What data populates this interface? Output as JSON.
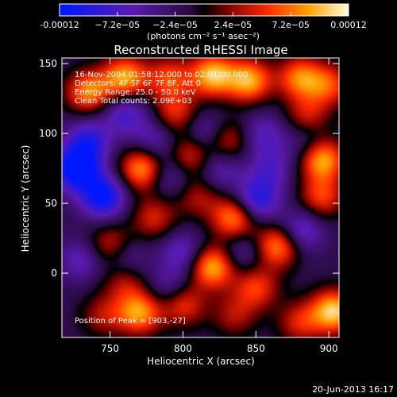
{
  "chart_data": {
    "type": "heatmap",
    "title": "Reconstructed RHESSI Image",
    "xlabel": "Heliocentric X (arcsec)",
    "ylabel": "Heliocentric Y (arcsec)",
    "xlim": [
      717,
      907
    ],
    "ylim": [
      -46,
      154
    ],
    "x_ticks": [
      750,
      800,
      850,
      900
    ],
    "y_ticks": [
      0,
      50,
      100,
      150
    ],
    "colorbar": {
      "range": [
        -0.00012,
        0.00012
      ],
      "tick_labels": [
        "-0.00012",
        "−7.2e−05",
        "−2.4e−05",
        "2.4e−05",
        "7.2e−05",
        "0.00012"
      ],
      "units": "(photons cm⁻² s⁻¹ asec⁻²)"
    },
    "annotations": [
      "16-Nov-2004 01:58:12.000 to 02:01:00.000",
      "Detectors: 4F 5F 6F 7F 8F, Att 0",
      "Energy Range: 25.0 - 50.0 keV",
      "Clean    Total counts: 2.09E+03"
    ],
    "peak_label": "Position of Peak = [903,-27]",
    "peak": [
      903,
      -27
    ],
    "blobs": [
      {
        "x": 735,
        "y": 130,
        "v": 0.8
      },
      {
        "x": 760,
        "y": 140,
        "v": 0.9
      },
      {
        "x": 790,
        "y": 140,
        "v": 0.6
      },
      {
        "x": 820,
        "y": 142,
        "v": 0.95
      },
      {
        "x": 845,
        "y": 138,
        "v": 0.9
      },
      {
        "x": 880,
        "y": 140,
        "v": 0.75
      },
      {
        "x": 900,
        "y": 135,
        "v": 0.6
      },
      {
        "x": 795,
        "y": 115,
        "v": 0.55
      },
      {
        "x": 885,
        "y": 112,
        "v": 0.5
      },
      {
        "x": 772,
        "y": 75,
        "v": 0.9
      },
      {
        "x": 805,
        "y": 85,
        "v": 0.6
      },
      {
        "x": 830,
        "y": 95,
        "v": 0.55
      },
      {
        "x": 895,
        "y": 82,
        "v": 0.95
      },
      {
        "x": 780,
        "y": 40,
        "v": 0.5
      },
      {
        "x": 810,
        "y": 55,
        "v": 0.4
      },
      {
        "x": 835,
        "y": 40,
        "v": 0.85
      },
      {
        "x": 865,
        "y": 20,
        "v": 0.85
      },
      {
        "x": 895,
        "y": 55,
        "v": 0.6
      },
      {
        "x": 750,
        "y": 20,
        "v": 0.55
      },
      {
        "x": 760,
        "y": -5,
        "v": 0.45
      },
      {
        "x": 820,
        "y": 5,
        "v": 0.95
      },
      {
        "x": 850,
        "y": -10,
        "v": 0.6
      },
      {
        "x": 745,
        "y": -30,
        "v": 0.4
      },
      {
        "x": 770,
        "y": -28,
        "v": 0.85
      },
      {
        "x": 800,
        "y": -22,
        "v": 0.6
      },
      {
        "x": 835,
        "y": -30,
        "v": 0.4
      },
      {
        "x": 880,
        "y": -35,
        "v": 0.5
      },
      {
        "x": 903,
        "y": -27,
        "v": 1.0
      },
      {
        "x": 727,
        "y": 75,
        "v": -1.0
      },
      {
        "x": 735,
        "y": 95,
        "v": -0.6
      },
      {
        "x": 745,
        "y": 55,
        "v": -0.85
      },
      {
        "x": 760,
        "y": 115,
        "v": -0.5
      },
      {
        "x": 790,
        "y": 70,
        "v": -0.4
      },
      {
        "x": 780,
        "y": 95,
        "v": -0.4
      },
      {
        "x": 815,
        "y": 100,
        "v": -0.45
      },
      {
        "x": 825,
        "y": 75,
        "v": -0.4
      },
      {
        "x": 850,
        "y": 52,
        "v": -0.7
      },
      {
        "x": 855,
        "y": 100,
        "v": -0.4
      },
      {
        "x": 880,
        "y": 30,
        "v": -0.55
      },
      {
        "x": 885,
        "y": 95,
        "v": -0.35
      },
      {
        "x": 760,
        "y": 10,
        "v": -0.4
      },
      {
        "x": 800,
        "y": 15,
        "v": -0.45
      },
      {
        "x": 840,
        "y": 15,
        "v": -0.35
      },
      {
        "x": 730,
        "y": 10,
        "v": -0.4
      },
      {
        "x": 790,
        "y": -10,
        "v": -0.35
      },
      {
        "x": 860,
        "y": 75,
        "v": -0.4
      }
    ]
  },
  "timestamp": "20-Jun-2013 16:17"
}
